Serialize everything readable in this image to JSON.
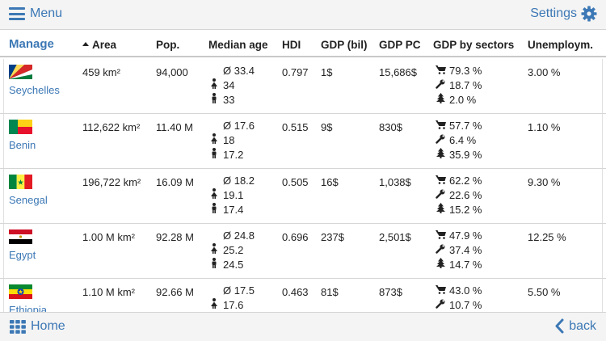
{
  "topbar": {
    "menu_label": "Menu",
    "settings_label": "Settings"
  },
  "header": {
    "manage": "Manage",
    "area": "Area",
    "pop": "Pop.",
    "median_age": "Median age",
    "hdi": "HDI",
    "gdp_bil": "GDP (bil)",
    "gdp_pc": "GDP PC",
    "gdp_sectors": "GDP by sectors",
    "unemployment": "Unemploym."
  },
  "rows": [
    {
      "country": "Seychelles",
      "area": "459 km²",
      "pop": "94,000",
      "age_total": "Ø 33.4",
      "age_female": "34",
      "age_male": "33",
      "hdi": "0.797",
      "gdp": "1$",
      "gdp_pc": "15,686$",
      "sec_services": "79.3 %",
      "sec_industry": "18.7 %",
      "sec_agriculture": "2.0 %",
      "unemployment": "3.00 %"
    },
    {
      "country": "Benin",
      "area": "112,622 km²",
      "pop": "11.40 M",
      "age_total": "Ø 17.6",
      "age_female": "18",
      "age_male": "17.2",
      "hdi": "0.515",
      "gdp": "9$",
      "gdp_pc": "830$",
      "sec_services": "57.7 %",
      "sec_industry": "6.4 %",
      "sec_agriculture": "35.9 %",
      "unemployment": "1.10 %"
    },
    {
      "country": "Senegal",
      "area": "196,722 km²",
      "pop": "16.09 M",
      "age_total": "Ø 18.2",
      "age_female": "19.1",
      "age_male": "17.4",
      "hdi": "0.505",
      "gdp": "16$",
      "gdp_pc": "1,038$",
      "sec_services": "62.2 %",
      "sec_industry": "22.6 %",
      "sec_agriculture": "15.2 %",
      "unemployment": "9.30 %"
    },
    {
      "country": "Egypt",
      "area": "1.00 M km²",
      "pop": "92.28 M",
      "age_total": "Ø 24.8",
      "age_female": "25.2",
      "age_male": "24.5",
      "hdi": "0.696",
      "gdp": "237$",
      "gdp_pc": "2,501$",
      "sec_services": "47.9 %",
      "sec_industry": "37.4 %",
      "sec_agriculture": "14.7 %",
      "unemployment": "12.25 %"
    },
    {
      "country": "Ethiopia",
      "area": "1.10 M km²",
      "pop": "92.66 M",
      "age_total": "Ø 17.5",
      "age_female": "17.6",
      "age_male": "",
      "hdi": "0.463",
      "gdp": "81$",
      "gdp_pc": "873$",
      "sec_services": "43.0 %",
      "sec_industry": "10.7 %",
      "sec_agriculture": "",
      "unemployment": "5.50 %"
    }
  ],
  "bottombar": {
    "home_label": "Home",
    "back_label": "back"
  },
  "colors": {
    "accent": "#3c78b5",
    "bar_bg": "#f4f4f4",
    "border": "#d6d6d6"
  },
  "icons": [
    "hamburger-icon",
    "gear-icon",
    "sort-up-icon",
    "female-icon",
    "male-icon",
    "cart-icon",
    "wrench-icon",
    "tree-icon",
    "grid-icon",
    "chevron-left-icon"
  ]
}
